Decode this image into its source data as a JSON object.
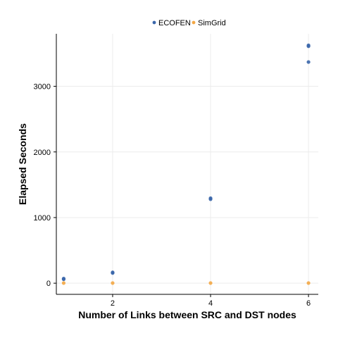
{
  "chart_data": {
    "type": "scatter",
    "xlabel": "Number of Links between SRC and DST nodes",
    "ylabel": "Elapsed Seconds",
    "xlim": [
      0.85,
      6.2
    ],
    "ylim": [
      -170,
      3800
    ],
    "xticks": [
      2,
      4,
      6
    ],
    "yticks": [
      0,
      1000,
      2000,
      3000
    ],
    "grid": true,
    "legend_position": "top",
    "series": [
      {
        "name": "ECOFEN",
        "color": "#3a66aa",
        "points": [
          {
            "x": 1,
            "y": 60
          },
          {
            "x": 1,
            "y": 70
          },
          {
            "x": 2,
            "y": 155
          },
          {
            "x": 2,
            "y": 165
          },
          {
            "x": 4,
            "y": 1280
          },
          {
            "x": 4,
            "y": 1295
          },
          {
            "x": 6,
            "y": 3370
          },
          {
            "x": 6,
            "y": 3610
          },
          {
            "x": 6,
            "y": 3625
          }
        ]
      },
      {
        "name": "SimGrid",
        "color": "#f3a744",
        "points": [
          {
            "x": 1,
            "y": 2
          },
          {
            "x": 2,
            "y": 2
          },
          {
            "x": 4,
            "y": 2
          },
          {
            "x": 6,
            "y": 2
          }
        ]
      }
    ]
  }
}
